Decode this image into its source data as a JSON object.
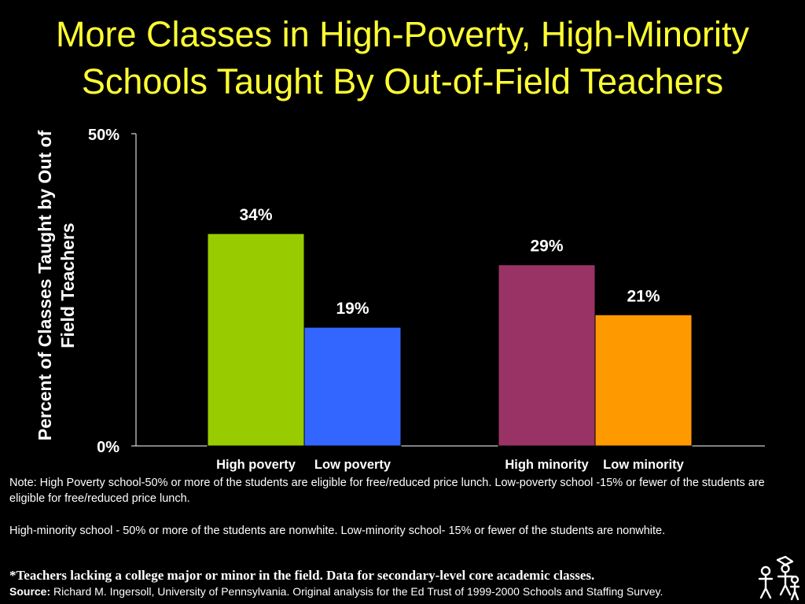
{
  "title": "More Classes in High-Poverty, High-Minority Schools Taught By Out-of-Field Teachers",
  "chart_data": {
    "type": "bar",
    "ylabel": "Percent of Classes Taught by Out of Field Teachers",
    "ylim": [
      0,
      50
    ],
    "ytick_labels": [
      "50%",
      "0%"
    ],
    "categories": [
      "High poverty",
      "Low poverty",
      "High minority",
      "Low minority"
    ],
    "values": [
      34,
      19,
      29,
      21
    ],
    "value_labels": [
      "34%",
      "19%",
      "29%",
      "21%"
    ],
    "colors": [
      "#99cc00",
      "#3366ff",
      "#993366",
      "#ff9900"
    ],
    "grid": false,
    "legend": "none"
  },
  "notes": {
    "poverty": "Note: High Poverty school-50% or more of the students are eligible for free/reduced price lunch.  Low-poverty school -15% or fewer of the students are eligible for free/reduced price lunch.",
    "minority": "High-minority school - 50% or more of the students are nonwhite. Low-minority school- 15% or fewer of the students are nonwhite."
  },
  "footnote": "*Teachers lacking a college major or minor in the field.  Data for secondary-level core academic classes.",
  "source": {
    "label": "Source:",
    "text": " Richard M. Ingersoll, University of Pennsylvania.  Original analysis for the Ed Trust of 1999-2000 Schools and Staffing Survey."
  },
  "logo_icon": "children-logo-icon"
}
